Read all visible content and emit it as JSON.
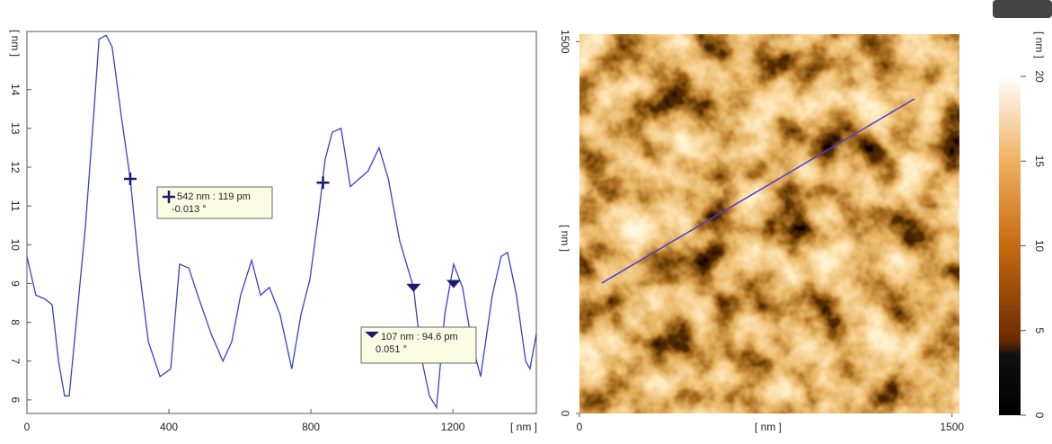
{
  "chart_data": [
    {
      "type": "line",
      "color": "#3a3fd0",
      "x_label": "[ nm ]",
      "y_label": "[ nm ]",
      "x": [
        0,
        25,
        51,
        71,
        89,
        106,
        119,
        139,
        165,
        190,
        203,
        223,
        240,
        266,
        291,
        316,
        342,
        375,
        405,
        430,
        456,
        481,
        519,
        552,
        577,
        602,
        633,
        658,
        683,
        713,
        746,
        772,
        797,
        822,
        840,
        860,
        885,
        911,
        936,
        961,
        992,
        1018,
        1050,
        1089,
        1113,
        1134,
        1154,
        1177,
        1202,
        1227,
        1253,
        1278,
        1311,
        1336,
        1354,
        1379,
        1405,
        1417,
        1435
      ],
      "y": [
        9.7,
        8.7,
        8.6,
        8.45,
        7.0,
        6.1,
        6.1,
        8.0,
        10.5,
        13.6,
        15.3,
        15.4,
        15.1,
        13.3,
        11.7,
        9.4,
        7.5,
        6.6,
        6.8,
        9.5,
        9.4,
        8.7,
        7.7,
        7.0,
        7.5,
        8.7,
        9.6,
        8.7,
        8.9,
        8.2,
        6.8,
        8.2,
        9.1,
        10.8,
        12.2,
        12.9,
        13.0,
        11.5,
        11.7,
        11.9,
        12.5,
        11.7,
        10.1,
        8.9,
        7.0,
        6.1,
        5.8,
        8.2,
        9.5,
        8.9,
        7.5,
        6.6,
        8.7,
        9.7,
        9.8,
        8.7,
        7.0,
        6.8,
        7.7
      ],
      "xlim": [
        0,
        1435
      ],
      "xticks": [
        0,
        400,
        800,
        1200
      ],
      "ylim": [
        5.65,
        15.5
      ],
      "yticks": [
        6,
        7,
        8,
        9,
        10,
        11,
        12,
        13,
        14
      ],
      "cross_cursors": {
        "x": [
          291,
          834
        ],
        "y": [
          11.7,
          11.6
        ]
      },
      "triangle_cursors": {
        "x": [
          1089,
          1202
        ],
        "y": [
          8.9,
          9.0
        ]
      },
      "annotations": [
        {
          "lines": [
            "542 nm : 119 pm",
            "-0.013 °"
          ]
        },
        {
          "lines": [
            "107 nm : 94.6 pm",
            "0.051 °"
          ]
        }
      ]
    },
    {
      "type": "image",
      "x_label": "[ nm ]",
      "y_label": "[ nm ]",
      "xlim": [
        0,
        1530
      ],
      "xticks": [
        0,
        1500
      ],
      "ylim": [
        0,
        1530
      ],
      "yticks": [
        0,
        1500
      ],
      "profile_line": {
        "x": [
          90,
          1349
        ],
        "y": [
          526,
          1269
        ]
      },
      "line_color": "#4a3fd0"
    },
    {
      "type": "colorbar",
      "label": "[ nm ]",
      "ylim": [
        0,
        20
      ],
      "yticks": [
        0,
        5,
        10,
        15,
        20
      ]
    }
  ]
}
